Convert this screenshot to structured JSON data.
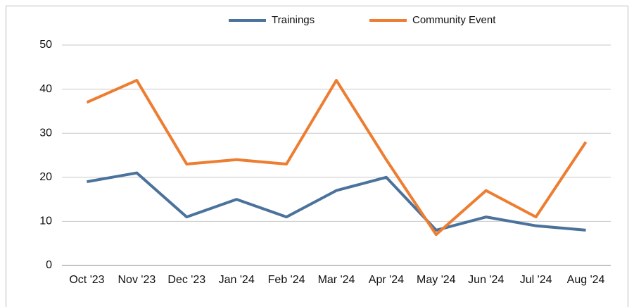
{
  "chart_data": {
    "type": "line",
    "categories": [
      "Oct '23",
      "Nov '23",
      "Dec '23",
      "Jan '24",
      "Feb '24",
      "Mar '24",
      "Apr '24",
      "May '24",
      "Jun '24",
      "Jul '24",
      "Aug '24"
    ],
    "series": [
      {
        "name": "Trainings",
        "color": "#4a729b",
        "values": [
          19,
          21,
          11,
          15,
          11,
          17,
          20,
          8,
          11,
          9,
          8
        ]
      },
      {
        "name": "Community Event",
        "color": "#ed7d31",
        "values": [
          37,
          42,
          23,
          24,
          23,
          42,
          24,
          7,
          17,
          11,
          28
        ]
      }
    ],
    "ylim": [
      0,
      50
    ],
    "yticks": [
      0,
      10,
      20,
      30,
      40,
      50
    ],
    "grid": true,
    "legend": "top"
  }
}
